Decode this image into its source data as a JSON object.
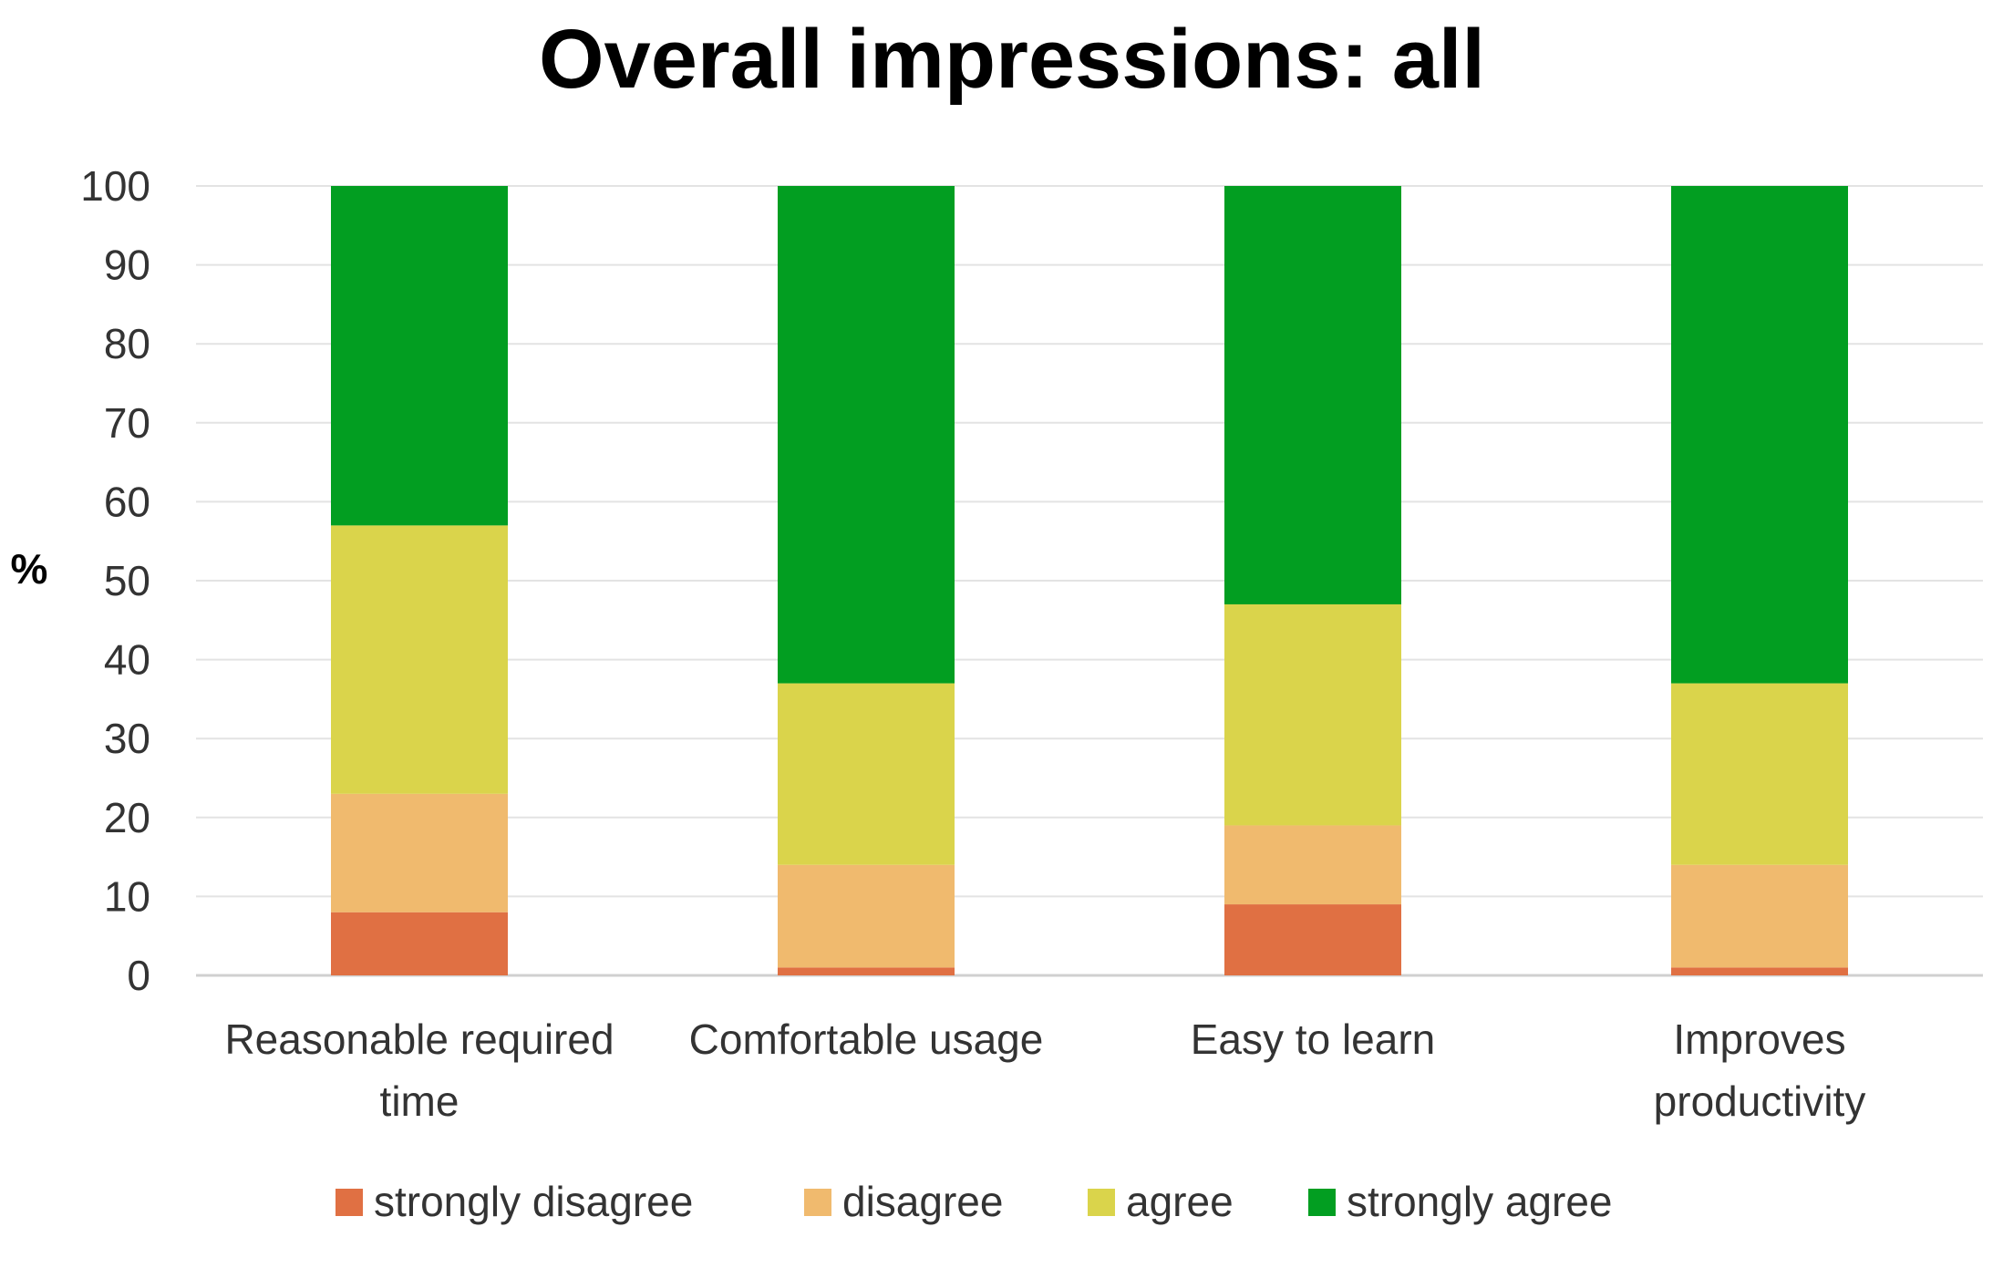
{
  "chart_data": {
    "type": "bar",
    "stacked": true,
    "title": "Overall impressions: all",
    "xlabel": "",
    "ylabel": "%",
    "ylim": [
      0,
      100
    ],
    "yticks": [
      0,
      10,
      20,
      30,
      40,
      50,
      60,
      70,
      80,
      90,
      100
    ],
    "grid": true,
    "legend_position": "bottom",
    "categories": [
      [
        "Reasonable required",
        "time"
      ],
      [
        "Comfortable usage"
      ],
      [
        "Easy to learn"
      ],
      [
        "Improves",
        "productivity"
      ]
    ],
    "series": [
      {
        "name": "strongly disagree",
        "color": "#E07043",
        "values": [
          8,
          1,
          9,
          1
        ]
      },
      {
        "name": "disagree",
        "color": "#F0BA6E",
        "values": [
          15,
          13,
          10,
          13
        ]
      },
      {
        "name": "agree",
        "color": "#DAD44B",
        "values": [
          34,
          23,
          28,
          23
        ]
      },
      {
        "name": "strongly agree",
        "color": "#029E21",
        "values": [
          43,
          63,
          53,
          63
        ]
      }
    ]
  }
}
